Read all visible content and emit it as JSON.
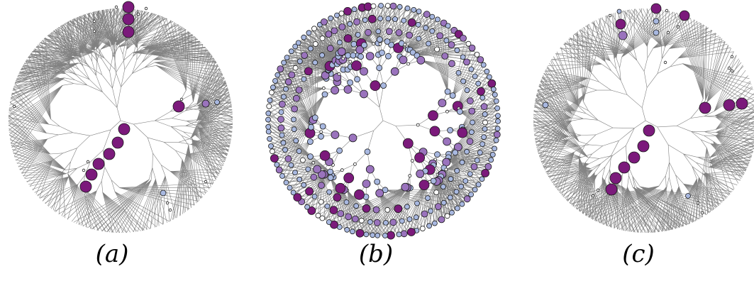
{
  "panels": [
    {
      "id": "a",
      "caption": "(a)"
    },
    {
      "id": "b",
      "caption": "(b)"
    },
    {
      "id": "c",
      "caption": "(c)"
    }
  ],
  "colors": {
    "branch": "#808080",
    "node_outline": "#1a1a1a",
    "dark_purple": "#7b1a7b",
    "medium_purple": "#9a73bd",
    "light_blue": "#a8b8e0",
    "pale": "#ffffff"
  },
  "node_color_scale": [
    "pale",
    "light_blue",
    "medium_purple",
    "dark_purple"
  ]
}
